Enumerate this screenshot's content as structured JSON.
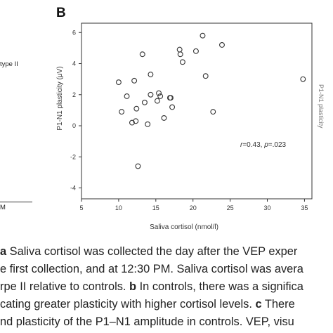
{
  "left_fragment": {
    "lines": [
      "type II"
    ],
    "axis_tick_text": "M"
  },
  "panel_letter": "B",
  "right_fragment": "P1-N1 plasticity",
  "chart_data": {
    "type": "scatter",
    "xlabel": "Saliva cortisol (nmol/l)",
    "ylabel": "P1-N1 plasticity (μV)",
    "xlim": [
      5,
      36
    ],
    "ylim": [
      -4.7,
      6.6
    ],
    "x_ticks": [
      5,
      10,
      15,
      20,
      25,
      30,
      35
    ],
    "y_ticks": [
      -4,
      -2,
      0,
      2,
      4,
      6
    ],
    "annotation": "r=0.43, p=.023",
    "points": [
      {
        "x": 10.0,
        "y": 2.8
      },
      {
        "x": 10.4,
        "y": 0.9
      },
      {
        "x": 11.1,
        "y": 1.9
      },
      {
        "x": 11.8,
        "y": 0.2
      },
      {
        "x": 12.1,
        "y": 2.9
      },
      {
        "x": 12.3,
        "y": 0.3
      },
      {
        "x": 12.6,
        "y": -2.6
      },
      {
        "x": 12.4,
        "y": 1.1
      },
      {
        "x": 13.2,
        "y": 4.6
      },
      {
        "x": 13.5,
        "y": 1.5
      },
      {
        "x": 13.9,
        "y": 0.1
      },
      {
        "x": 14.3,
        "y": 2.0
      },
      {
        "x": 14.3,
        "y": 3.3
      },
      {
        "x": 15.2,
        "y": 1.6
      },
      {
        "x": 15.4,
        "y": 2.1
      },
      {
        "x": 15.6,
        "y": 1.9
      },
      {
        "x": 16.1,
        "y": 0.5
      },
      {
        "x": 16.9,
        "y": 1.8
      },
      {
        "x": 17.0,
        "y": 1.8
      },
      {
        "x": 17.2,
        "y": 1.2
      },
      {
        "x": 18.2,
        "y": 4.9
      },
      {
        "x": 18.3,
        "y": 4.6
      },
      {
        "x": 18.6,
        "y": 4.1
      },
      {
        "x": 20.4,
        "y": 4.8
      },
      {
        "x": 21.3,
        "y": 5.8
      },
      {
        "x": 21.7,
        "y": 3.2
      },
      {
        "x": 22.7,
        "y": 0.9
      },
      {
        "x": 23.9,
        "y": 5.2
      },
      {
        "x": 34.8,
        "y": 3.0
      }
    ]
  },
  "caption": {
    "lines": [
      {
        "bold": "a",
        "text": " Saliva cortisol was collected the day after the VEP exper"
      },
      {
        "bold": "",
        "text": "e first collection, and at 12:30 PM. Saliva cortisol was avera"
      },
      {
        "bold": "",
        "text": "rpe II relative to controls. ",
        "bold2": "b",
        "text2": " In controls, there was a significa"
      },
      {
        "bold": "",
        "text": "cating greater plasticity with higher cortisol levels. ",
        "bold2": "c",
        "text2": " There"
      },
      {
        "bold": "",
        "text": "nd plasticity of the P1–N1 amplitude in controls. VEP, visu"
      }
    ]
  }
}
